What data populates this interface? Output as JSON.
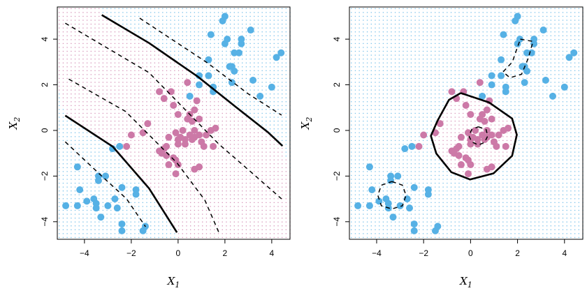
{
  "chart_data": {
    "type": "scatter",
    "xlabel": "X",
    "xlabel_sub": "1",
    "ylabel": "X",
    "ylabel_sub": "2",
    "xlim": [
      -5.16,
      4.78
    ],
    "ylim": [
      -4.77,
      5.41
    ],
    "xticks": [
      -4,
      -2,
      0,
      2,
      4
    ],
    "yticks": [
      -4,
      -2,
      0,
      2,
      4
    ],
    "tick_labels": [
      "−4",
      "−2",
      "0",
      "2",
      "4"
    ],
    "grid_step": 0.17,
    "colors": {
      "blue": "#56B1E5",
      "pink": "#CC79A7",
      "line": "#000000"
    },
    "series": [
      {
        "name": "blue",
        "points": [
          [
            2.0,
            5.0
          ],
          [
            1.9,
            4.8
          ],
          [
            3.1,
            4.4
          ],
          [
            1.4,
            4.2
          ],
          [
            2.1,
            4.0
          ],
          [
            2.0,
            3.8
          ],
          [
            2.7,
            4.0
          ],
          [
            2.7,
            3.8
          ],
          [
            2.4,
            3.4
          ],
          [
            2.6,
            3.4
          ],
          [
            4.2,
            3.2
          ],
          [
            4.4,
            3.4
          ],
          [
            1.3,
            3.1
          ],
          [
            2.2,
            2.8
          ],
          [
            2.3,
            2.8
          ],
          [
            2.4,
            2.6
          ],
          [
            0.9,
            2.4
          ],
          [
            1.3,
            2.4
          ],
          [
            0.9,
            2.0
          ],
          [
            1.5,
            1.9
          ],
          [
            1.5,
            1.7
          ],
          [
            2.3,
            2.1
          ],
          [
            3.2,
            2.2
          ],
          [
            4.0,
            1.9
          ],
          [
            3.5,
            1.5
          ],
          [
            0.5,
            1.5
          ],
          [
            -2.8,
            -0.8
          ],
          [
            -2.5,
            -0.7
          ],
          [
            -4.3,
            -1.6
          ],
          [
            -3.4,
            -2.0
          ],
          [
            -3.1,
            -2.0
          ],
          [
            -3.4,
            -2.2
          ],
          [
            -4.2,
            -2.6
          ],
          [
            -2.4,
            -2.5
          ],
          [
            -1.8,
            -2.6
          ],
          [
            -1.8,
            -2.8
          ],
          [
            -4.8,
            -3.3
          ],
          [
            -4.3,
            -3.3
          ],
          [
            -3.9,
            -3.1
          ],
          [
            -3.6,
            -3.0
          ],
          [
            -3.5,
            -3.4
          ],
          [
            -3.5,
            -3.2
          ],
          [
            -3.0,
            -3.3
          ],
          [
            -2.7,
            -3.0
          ],
          [
            -2.6,
            -3.4
          ],
          [
            -3.3,
            -3.8
          ],
          [
            -2.4,
            -4.1
          ],
          [
            -2.4,
            -4.4
          ],
          [
            -1.5,
            -4.4
          ],
          [
            -1.4,
            -4.2
          ]
        ]
      },
      {
        "name": "pink",
        "points": [
          [
            0.4,
            2.1
          ],
          [
            -0.8,
            1.7
          ],
          [
            -0.3,
            1.7
          ],
          [
            -0.6,
            1.4
          ],
          [
            -0.2,
            1.1
          ],
          [
            0.8,
            1.3
          ],
          [
            0.7,
            0.9
          ],
          [
            0.0,
            0.7
          ],
          [
            0.5,
            0.7
          ],
          [
            0.4,
            0.5
          ],
          [
            0.9,
            0.5
          ],
          [
            0.6,
            0.4
          ],
          [
            -1.3,
            0.3
          ],
          [
            -1.5,
            -0.1
          ],
          [
            -2.0,
            -0.2
          ],
          [
            -2.2,
            -0.7
          ],
          [
            0.2,
            0.0
          ],
          [
            -0.1,
            -0.1
          ],
          [
            0.7,
            0.0
          ],
          [
            0.5,
            -0.2
          ],
          [
            0.9,
            -0.2
          ],
          [
            1.2,
            -0.2
          ],
          [
            1.4,
            0.0
          ],
          [
            1.6,
            0.1
          ],
          [
            -0.4,
            -0.3
          ],
          [
            0.0,
            -0.4
          ],
          [
            0.3,
            -0.4
          ],
          [
            0.6,
            -0.4
          ],
          [
            1.0,
            -0.5
          ],
          [
            1.1,
            -0.7
          ],
          [
            1.5,
            -0.7
          ],
          [
            0.3,
            -0.6
          ],
          [
            0.0,
            -0.6
          ],
          [
            -0.5,
            -0.7
          ],
          [
            -0.6,
            -0.8
          ],
          [
            -0.8,
            -0.9
          ],
          [
            -0.7,
            -1.0
          ],
          [
            -0.5,
            -1.1
          ],
          [
            -0.2,
            -1.2
          ],
          [
            -0.1,
            -1.3
          ],
          [
            -0.4,
            -1.5
          ],
          [
            0.0,
            -1.5
          ],
          [
            -0.1,
            -1.9
          ],
          [
            0.7,
            -1.7
          ],
          [
            0.9,
            -1.6
          ],
          [
            0.1,
            -0.3
          ],
          [
            0.7,
            -0.3
          ]
        ]
      }
    ],
    "panels": [
      {
        "kernel": "polynomial",
        "solid": [
          [
            [
              -3.26,
              5.06
            ],
            [
              -1.24,
              3.83
            ],
            [
              0.85,
              2.35
            ],
            [
              2.5,
              1.0
            ],
            [
              3.85,
              -0.09
            ],
            [
              4.46,
              -0.68
            ]
          ],
          [
            [
              -4.82,
              0.65
            ],
            [
              -2.79,
              -0.71
            ],
            [
              -1.24,
              -2.54
            ],
            [
              -0.05,
              -4.47
            ]
          ]
        ],
        "dashed": [
          [
            [
              -1.64,
              4.92
            ],
            [
              1.24,
              2.97
            ],
            [
              3.0,
              1.6
            ],
            [
              4.42,
              0.67
            ]
          ],
          [
            [
              -4.82,
              4.7
            ],
            [
              -1.24,
              2.53
            ],
            [
              1.74,
              -0.6
            ],
            [
              3.2,
              -1.9
            ],
            [
              4.42,
              -3.0
            ]
          ],
          [
            [
              -4.67,
              2.25
            ],
            [
              -2.24,
              0.83
            ],
            [
              -0.05,
              -1.42
            ],
            [
              1.14,
              -3.05
            ],
            [
              1.74,
              -4.47
            ]
          ],
          [
            [
              -4.82,
              -0.5
            ],
            [
              -3.23,
              -2.03
            ],
            [
              -2.2,
              -3.0
            ],
            [
              -1.39,
              -4.22
            ]
          ]
        ]
      },
      {
        "kernel": "radial",
        "solid": [
          [
            [
              -0.42,
              1.64
            ],
            [
              0.78,
              1.23
            ],
            [
              1.77,
              0.52
            ],
            [
              1.97,
              -0.19
            ],
            [
              1.77,
              -1.11
            ],
            [
              0.98,
              -1.88
            ],
            [
              -0.02,
              -2.15
            ],
            [
              -0.82,
              -1.83
            ],
            [
              -1.46,
              -1.01
            ],
            [
              -1.69,
              -0.24
            ],
            [
              -1.41,
              0.42
            ],
            [
              -0.92,
              1.34
            ],
            [
              -0.42,
              1.64
            ]
          ]
        ],
        "dashed": [
          [
            [
              0.33,
              0.16
            ],
            [
              0.66,
              0.04
            ],
            [
              0.73,
              -0.24
            ],
            [
              0.6,
              -0.52
            ],
            [
              0.33,
              -0.64
            ],
            [
              0.05,
              -0.5
            ],
            [
              -0.07,
              -0.24
            ],
            [
              0.05,
              0.04
            ],
            [
              0.33,
              0.16
            ]
          ],
          [
            [
              -3.35,
              -2.24
            ],
            [
              -2.9,
              -2.4
            ],
            [
              -2.75,
              -2.84
            ],
            [
              -2.9,
              -3.3
            ],
            [
              -3.35,
              -3.44
            ],
            [
              -3.8,
              -3.3
            ],
            [
              -3.95,
              -2.84
            ],
            [
              -3.8,
              -2.4
            ],
            [
              -3.35,
              -2.24
            ]
          ],
          [
            [
              2.12,
              4.0
            ],
            [
              2.66,
              3.9
            ],
            [
              2.46,
              3.17
            ],
            [
              2.17,
              2.46
            ],
            [
              1.68,
              2.31
            ],
            [
              1.38,
              2.56
            ],
            [
              1.78,
              3.0
            ],
            [
              1.98,
              3.6
            ],
            [
              2.12,
              4.0
            ]
          ]
        ]
      }
    ]
  }
}
